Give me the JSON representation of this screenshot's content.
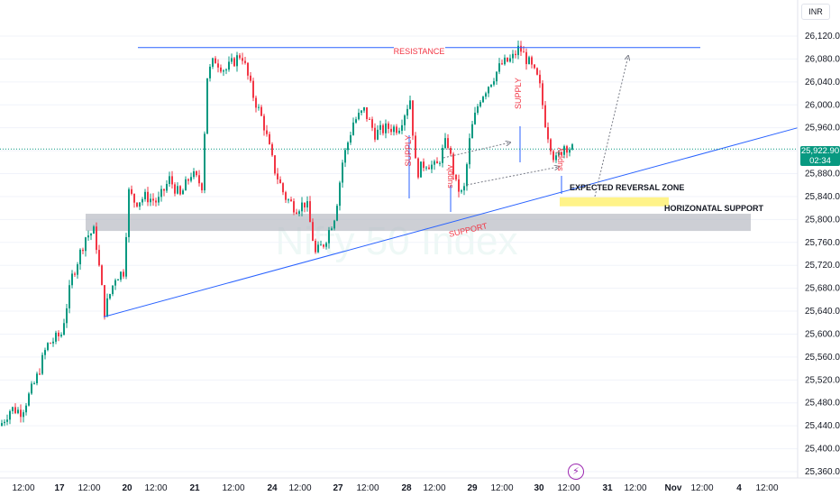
{
  "watermark": "Nifty 50 Index",
  "currency": "INR",
  "last_price": {
    "value": "25,922.90",
    "countdown": "02:34"
  },
  "colors": {
    "up": "#089981",
    "down": "#f23645",
    "trend": "#2962ff",
    "zone": "#ffeb3b",
    "band": "#b2b5be",
    "annotation": "#f23645"
  },
  "chart_data": {
    "type": "candlestick",
    "ylim": [
      25340,
      26150
    ],
    "y_ticks": [
      26120,
      26080,
      26040,
      26000,
      25960,
      25920,
      25880,
      25840,
      25800,
      25760,
      25720,
      25680,
      25640,
      25600,
      25560,
      25520,
      25480,
      25440,
      25400,
      25360
    ],
    "y_tick_labels": [
      "26,120.00",
      "26,080.00",
      "26,040.00",
      "26,000.00",
      "25,960.00",
      "25,920.00",
      "25,880.00",
      "25,840.00",
      "25,800.00",
      "25,760.00",
      "25,720.00",
      "25,680.00",
      "25,640.00",
      "25,600.00",
      "25,560.00",
      "25,520.00",
      "25,480.00",
      "25,440.00",
      "25,400.00",
      "25,360.00"
    ],
    "x_tick_labels": [
      "12:00",
      "17",
      "12:00",
      "20",
      "12:00",
      "21",
      "12:00",
      "24",
      "12:00",
      "27",
      "12:00",
      "28",
      "12:00",
      "29",
      "12:00",
      "30",
      "12:00",
      "31",
      "12:00",
      "Nov",
      "12:00",
      "4",
      "12:00"
    ],
    "close_path": [
      {
        "t": 0,
        "p": 25440
      },
      {
        "t": 12,
        "p": 25470
      },
      {
        "t": 24,
        "p": 25465
      },
      {
        "t": 40,
        "p": 25520
      },
      {
        "t": 52,
        "p": 25580
      },
      {
        "t": 68,
        "p": 25600
      },
      {
        "t": 80,
        "p": 25700
      },
      {
        "t": 95,
        "p": 25770
      },
      {
        "t": 105,
        "p": 25780
      },
      {
        "t": 116,
        "p": 25640
      },
      {
        "t": 128,
        "p": 25700
      },
      {
        "t": 138,
        "p": 25710
      },
      {
        "t": 142,
        "p": 25850
      },
      {
        "t": 150,
        "p": 25830
      },
      {
        "t": 162,
        "p": 25840
      },
      {
        "t": 175,
        "p": 25830
      },
      {
        "t": 188,
        "p": 25870
      },
      {
        "t": 200,
        "p": 25840
      },
      {
        "t": 212,
        "p": 25880
      },
      {
        "t": 224,
        "p": 25860
      },
      {
        "t": 230,
        "p": 26050
      },
      {
        "t": 238,
        "p": 26080
      },
      {
        "t": 250,
        "p": 26060
      },
      {
        "t": 268,
        "p": 26090
      },
      {
        "t": 280,
        "p": 26020
      },
      {
        "t": 292,
        "p": 25970
      },
      {
        "t": 304,
        "p": 25890
      },
      {
        "t": 316,
        "p": 25840
      },
      {
        "t": 328,
        "p": 25820
      },
      {
        "t": 340,
        "p": 25830
      },
      {
        "t": 350,
        "p": 25740
      },
      {
        "t": 360,
        "p": 25760
      },
      {
        "t": 372,
        "p": 25810
      },
      {
        "t": 380,
        "p": 25900
      },
      {
        "t": 392,
        "p": 25970
      },
      {
        "t": 404,
        "p": 25990
      },
      {
        "t": 416,
        "p": 25950
      },
      {
        "t": 430,
        "p": 25960
      },
      {
        "t": 442,
        "p": 25960
      },
      {
        "t": 455,
        "p": 26010
      },
      {
        "t": 462,
        "p": 25880
      },
      {
        "t": 472,
        "p": 25900
      },
      {
        "t": 484,
        "p": 25890
      },
      {
        "t": 496,
        "p": 25940
      },
      {
        "t": 506,
        "p": 25860
      },
      {
        "t": 514,
        "p": 25840
      },
      {
        "t": 522,
        "p": 25950
      },
      {
        "t": 532,
        "p": 26010
      },
      {
        "t": 544,
        "p": 26040
      },
      {
        "t": 556,
        "p": 26070
      },
      {
        "t": 568,
        "p": 26080
      },
      {
        "t": 576,
        "p": 26100
      },
      {
        "t": 588,
        "p": 26070
      },
      {
        "t": 598,
        "p": 26040
      },
      {
        "t": 606,
        "p": 25960
      },
      {
        "t": 616,
        "p": 25900
      },
      {
        "t": 626,
        "p": 25930
      },
      {
        "t": 636,
        "p": 25922
      }
    ],
    "lines": {
      "resistance": {
        "label": "RESISTANCE",
        "price": 26100
      },
      "support_trend": {
        "label": "SUPPORT",
        "from": {
          "t": 115,
          "p": 25630
        },
        "to": {
          "t": 885,
          "p": 25960
        }
      },
      "horizontal_support": {
        "label": "HORIZONATAL SUPPORT",
        "price_top": 25810,
        "price_bottom": 25780
      },
      "expected_reversal_zone": {
        "label": "EXPECTED REVERSAL ZONE",
        "price_top": 25845,
        "price_bottom": 25830
      }
    },
    "annotations": [
      {
        "text": "SUPPLY",
        "t": 456,
        "p": 25920
      },
      {
        "text": "SUPPLY",
        "t": 578,
        "p": 26020
      },
      {
        "text": "supply",
        "t": 502,
        "p": 25875
      },
      {
        "text": "supply",
        "t": 624,
        "p": 25905
      }
    ]
  }
}
